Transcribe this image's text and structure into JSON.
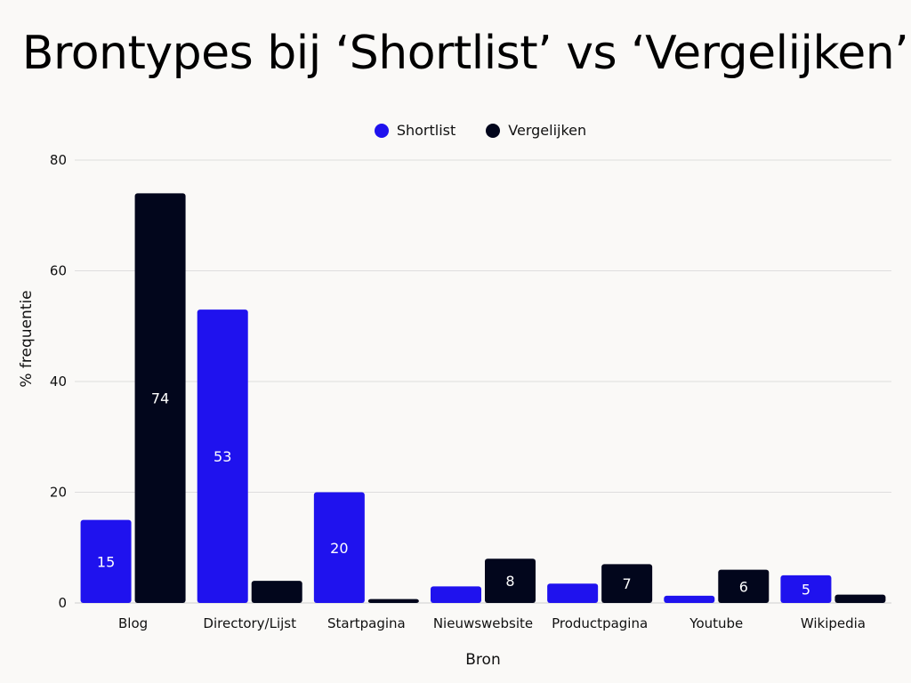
{
  "title": "Brontypes bij ‘Shortlist’ vs ‘Vergelijken’",
  "chart_data": {
    "type": "bar",
    "title": "Brontypes bij ‘Shortlist’ vs ‘Vergelijken’",
    "xlabel": "Bron",
    "ylabel": "% frequentie",
    "categories": [
      "Blog",
      "Directory/Lijst",
      "Startpagina",
      "Nieuwswebsite",
      "Productpagina",
      "Youtube",
      "Wikipedia"
    ],
    "series": [
      {
        "name": "Shortlist",
        "color": "#1f12ee",
        "values": [
          15,
          53,
          20,
          3,
          3.5,
          1.3,
          5
        ],
        "labels": [
          "15",
          "53",
          "20",
          "",
          "",
          "",
          "5"
        ]
      },
      {
        "name": "Vergelijken",
        "color": "#02061c",
        "values": [
          74,
          4,
          0.7,
          8,
          7,
          6,
          1.5
        ],
        "labels": [
          "74",
          "",
          "",
          "8",
          "7",
          "6",
          ""
        ]
      }
    ],
    "ylim": [
      0,
      80
    ],
    "yticks": [
      0,
      20,
      40,
      60,
      80
    ],
    "grid": true,
    "legend_position": "top-center"
  }
}
